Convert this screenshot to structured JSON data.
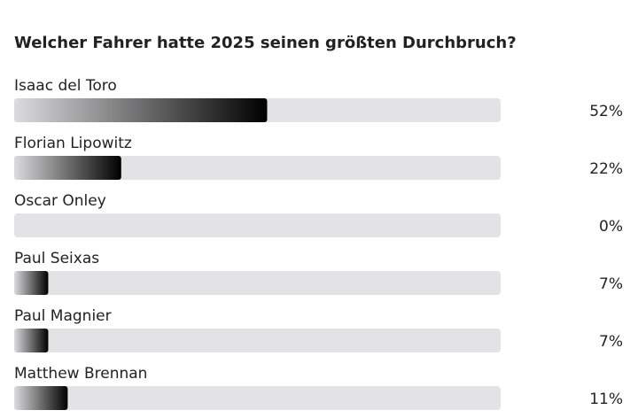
{
  "chart_data": {
    "type": "bar",
    "orientation": "horizontal",
    "title": "Welcher Fahrer hatte 2025 seinen größten Durchbruch?",
    "categories": [
      "Isaac del Toro",
      "Florian Lipowitz",
      "Oscar Onley",
      "Paul Seixas",
      "Paul Magnier",
      "Matthew Brennan"
    ],
    "values": [
      52,
      22,
      0,
      7,
      7,
      11
    ],
    "value_labels": [
      "52%",
      "22%",
      "0%",
      "7%",
      "7%",
      "11%"
    ],
    "color": "#000000",
    "xlim": [
      0,
      100
    ]
  }
}
